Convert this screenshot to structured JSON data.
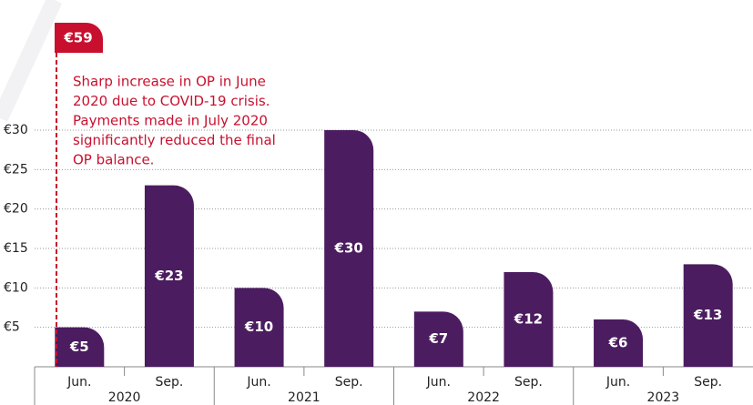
{
  "chart_data": {
    "type": "bar",
    "categories": [
      "Jun.",
      "Sep.",
      "Jun.",
      "Sep.",
      "Jun.",
      "Sep.",
      "Jun.",
      "Sep."
    ],
    "year_labels": [
      "2020",
      "2021",
      "2022",
      "2023"
    ],
    "values": [
      5,
      23,
      10,
      30,
      7,
      12,
      6,
      13
    ],
    "value_labels": [
      "€5",
      "€23",
      "€10",
      "€30",
      "€7",
      "€12",
      "€6",
      "€13"
    ],
    "color": "#4b1c5f",
    "ylim": [
      0,
      30
    ],
    "yticks": [
      {
        "value": 5,
        "label": "€5"
      },
      {
        "value": 10,
        "label": "€10"
      },
      {
        "value": 15,
        "label": "€15"
      },
      {
        "value": 20,
        "label": "€20"
      },
      {
        "value": 25,
        "label": "€25"
      },
      {
        "value": 30,
        "label": "€30"
      }
    ],
    "grid": true,
    "annotation": {
      "value": 59,
      "label": "€59",
      "color": "#c8102e",
      "text": [
        "Sharp increase in OP in June",
        "2020 due to COVID-19 crisis.",
        "Payments made in July 2020",
        "significantly reduced the final",
        "OP balance."
      ]
    }
  }
}
